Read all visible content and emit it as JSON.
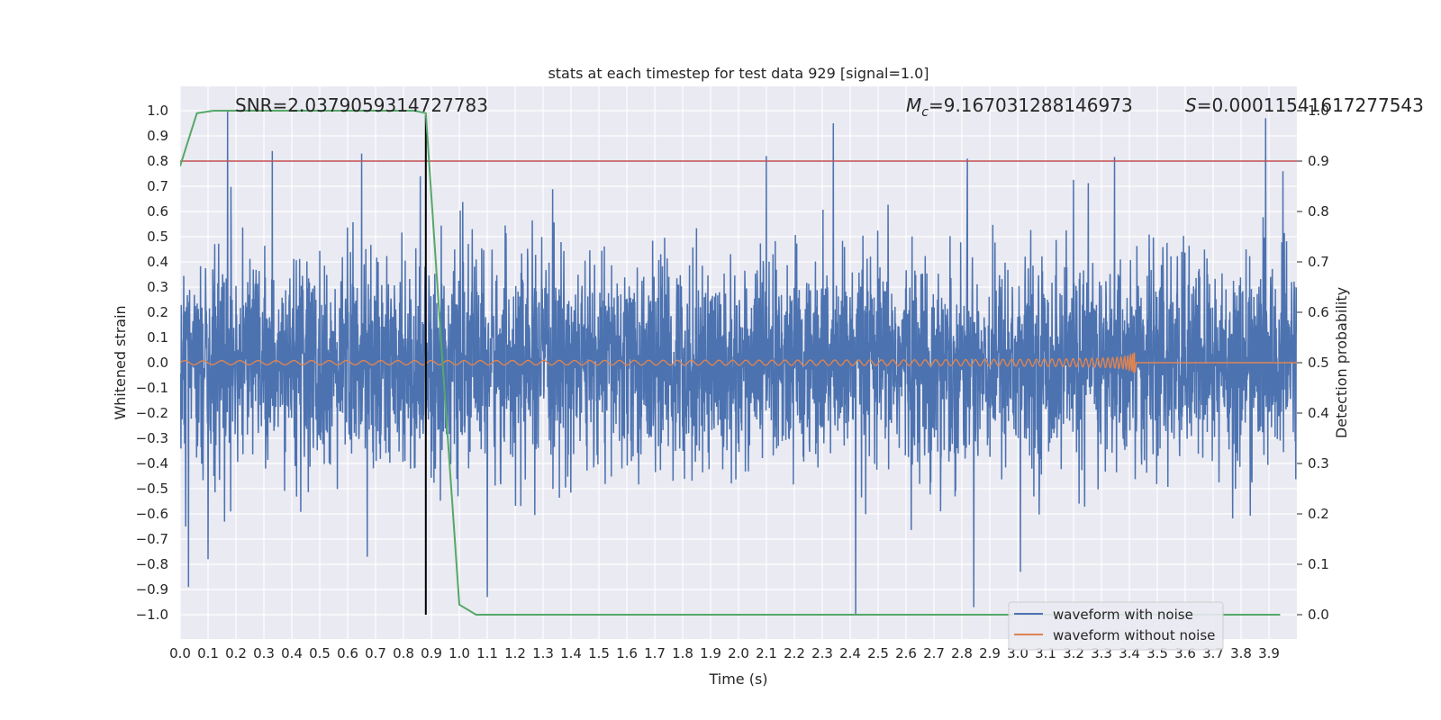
{
  "chart_data": {
    "type": "line",
    "title": "stats at each timestep for test data 929 [signal=1.0]",
    "xlabel": "Time (s)",
    "ylabel": "Whitened strain",
    "y2label": "Detection probability",
    "xlim": [
      0.0,
      4.0
    ],
    "ylim": [
      -1.1,
      1.1
    ],
    "y2lim": [
      -0.05,
      1.0
    ],
    "grid": true,
    "legend_position": "lower-right",
    "xticks": [
      "0.0",
      "0.1",
      "0.2",
      "0.3",
      "0.4",
      "0.5",
      "0.6",
      "0.7",
      "0.8",
      "0.9",
      "1.0",
      "1.1",
      "1.2",
      "1.3",
      "1.4",
      "1.5",
      "1.6",
      "1.7",
      "1.8",
      "1.9",
      "2.0",
      "2.1",
      "2.2",
      "2.3",
      "2.4",
      "2.5",
      "2.6",
      "2.7",
      "2.8",
      "2.9",
      "3.0",
      "3.1",
      "3.2",
      "3.3",
      "3.4",
      "3.5",
      "3.6",
      "3.7",
      "3.8",
      "3.9"
    ],
    "yticks": [
      "1.0",
      "0.9",
      "0.8",
      "0.7",
      "0.6",
      "0.5",
      "0.4",
      "0.3",
      "0.2",
      "0.1",
      "0.0",
      "−0.1",
      "−0.2",
      "−0.3",
      "−0.4",
      "−0.5",
      "−0.6",
      "−0.7",
      "−0.8",
      "−0.9",
      "−1.0"
    ],
    "y2ticks": [
      "1.0",
      "0.9",
      "0.8",
      "0.7",
      "0.6",
      "0.5",
      "0.4",
      "0.3",
      "0.2",
      "0.1",
      "0.0"
    ],
    "annotations": {
      "snr": "SNR=2.0379059314727783",
      "mc_symbol": "M",
      "mc_sub": "c",
      "mc_value": "=9.167031288146973",
      "s_symbol": "S",
      "s_value": "=0.00011541617277543"
    },
    "series": [
      {
        "name": "waveform with noise",
        "axis": "left",
        "color": "#4c72b0",
        "description_kind": "noise",
        "extremes": [
          {
            "x": 0.02,
            "y": -0.65
          },
          {
            "x": 0.03,
            "y": -0.89
          },
          {
            "x": 0.1,
            "y": -0.78
          },
          {
            "x": 0.17,
            "y": 1.0
          },
          {
            "x": 0.33,
            "y": 0.84
          },
          {
            "x": 0.65,
            "y": 0.83
          },
          {
            "x": 0.67,
            "y": -0.77
          },
          {
            "x": 0.86,
            "y": 0.74
          },
          {
            "x": 1.1,
            "y": -0.93
          },
          {
            "x": 2.1,
            "y": 0.82
          },
          {
            "x": 2.34,
            "y": 0.95
          },
          {
            "x": 2.42,
            "y": -1.0
          },
          {
            "x": 2.82,
            "y": 0.81
          },
          {
            "x": 3.01,
            "y": -0.83
          },
          {
            "x": 3.95,
            "y": 0.76
          }
        ]
      },
      {
        "name": "waveform without noise",
        "axis": "left",
        "color": "#dd8452",
        "description_kind": "chirp",
        "start_x": 0.0,
        "merger_x": 3.42,
        "start_amplitude": 0.008,
        "peak_amplitude": 0.07
      },
      {
        "name": "",
        "axis": "right",
        "color": "#55a868",
        "x": [
          0.0,
          0.06,
          0.12,
          0.18,
          0.24,
          0.3,
          0.36,
          0.42,
          0.48,
          0.54,
          0.6,
          0.66,
          0.72,
          0.78,
          0.84,
          0.88,
          0.94,
          1.0,
          1.06,
          1.12,
          1.5,
          2.0,
          2.5,
          3.0,
          3.5,
          3.94
        ],
        "values": [
          0.89,
          0.995,
          1.0,
          1.0,
          1.0,
          1.0,
          1.0,
          1.0,
          1.0,
          1.0,
          1.0,
          1.0,
          1.0,
          1.0,
          1.0,
          0.995,
          0.5,
          0.02,
          0.0,
          0.0,
          0.0,
          0.0,
          0.0,
          0.0,
          0.0,
          0.0
        ]
      }
    ],
    "threshold_line": {
      "value": 0.9,
      "axis": "right",
      "color": "#c44e52"
    },
    "marker_line": {
      "x": 0.88,
      "color": "#000000"
    }
  },
  "legend": {
    "items": [
      "waveform with noise",
      "waveform without noise"
    ]
  }
}
